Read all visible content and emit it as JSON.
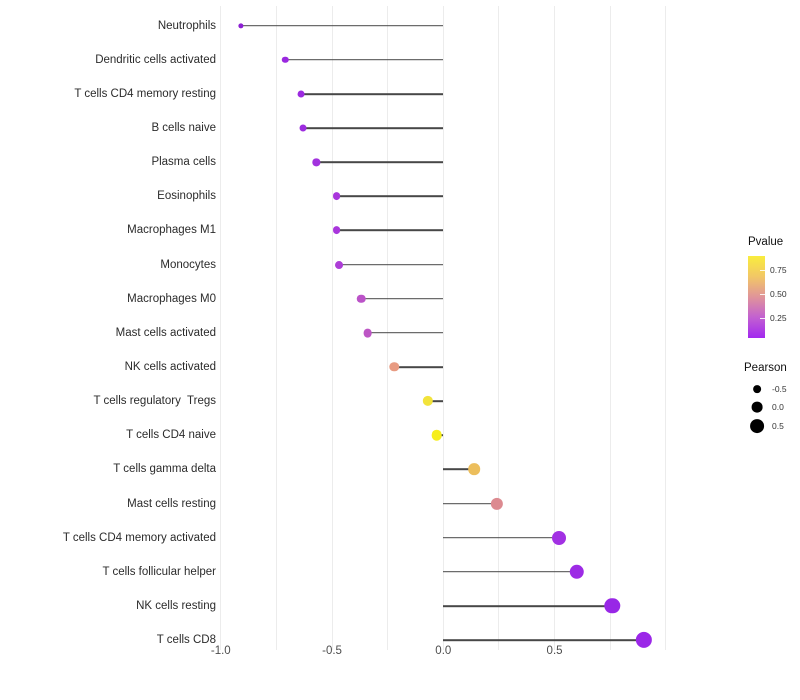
{
  "chart_data": {
    "type": "scatter",
    "variant": "lollipop",
    "title": "",
    "xlabel": "",
    "ylabel": "",
    "categories": [
      "Neutrophils",
      "Dendritic cells activated",
      "T cells CD4 memory resting",
      "B cells naive",
      "Plasma cells",
      "Eosinophils",
      "Macrophages M1",
      "Monocytes",
      "Macrophages M0",
      "Mast cells activated",
      "NK cells activated",
      "T cells regulatory  Tregs",
      "T cells CD4 naive",
      "T cells gamma delta",
      "Mast cells resting",
      "T cells CD4 memory activated",
      "T cells follicular helper",
      "NK cells resting",
      "T cells CD8"
    ],
    "series": [
      {
        "name": "Pearson",
        "values": [
          -0.91,
          -0.71,
          -0.64,
          -0.63,
          -0.57,
          -0.48,
          -0.48,
          -0.47,
          -0.37,
          -0.34,
          -0.22,
          -0.07,
          -0.03,
          0.14,
          0.24,
          0.52,
          0.6,
          0.76,
          0.9
        ]
      }
    ],
    "point_colors": [
      "#8D1FD3",
      "#9A28E0",
      "#9C2AE0",
      "#9D2CDF",
      "#A232DE",
      "#A835DC",
      "#A936DC",
      "#AD3ED7",
      "#BB53C8",
      "#BD56C5",
      "#E89B82",
      "#F2E33B",
      "#F6EE1D",
      "#ECBE5C",
      "#DC8A90",
      "#A231E3",
      "#9D2BE5",
      "#9827E6",
      "#9B27E8"
    ],
    "x_ticks": [
      {
        "label": "-1.0",
        "value": -1.0
      },
      {
        "label": "-0.5",
        "value": -0.5
      },
      {
        "label": "0.0",
        "value": 0.0
      },
      {
        "label": "0.5",
        "value": 0.5
      }
    ],
    "xlim": [
      -1.08,
      1.21
    ],
    "grid": {
      "vertical": true,
      "from": -1.0,
      "to": 1.0,
      "step": 0.25,
      "color": "#ececec"
    },
    "stem_color": "#474747",
    "legend": {
      "pvalue": {
        "title": "Pvalue",
        "tick_labels": [
          "0.75",
          "0.50",
          "0.25"
        ],
        "gradient_top_color": "#F9ED3D",
        "gradient_bottom_color": "#A228EF"
      },
      "pearson": {
        "title": "Pearson",
        "items": [
          {
            "label": "-0.5",
            "value": -0.5
          },
          {
            "label": "0.0",
            "value": 0.0
          },
          {
            "label": "0.5",
            "value": 0.5
          }
        ]
      }
    }
  }
}
